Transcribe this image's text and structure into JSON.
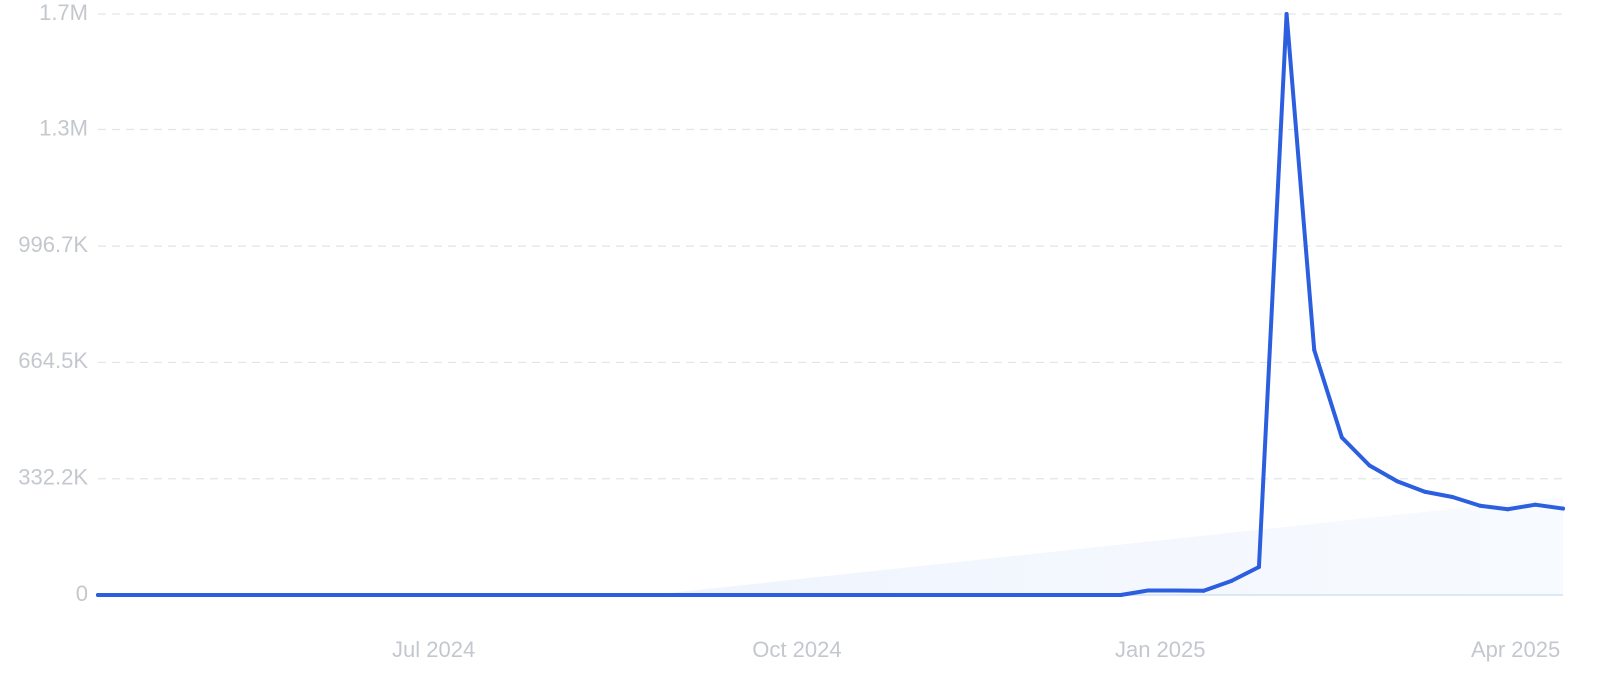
{
  "chart_data": {
    "type": "line",
    "title": "",
    "xlabel": "",
    "ylabel": "",
    "ylim": [
      0,
      1660000
    ],
    "xlim": [
      "2024-04-07",
      "2025-04-13"
    ],
    "grid": true,
    "legend": "none",
    "y_ticks": [
      {
        "value": 0,
        "label": "0"
      },
      {
        "value": 332200,
        "label": "332.2K"
      },
      {
        "value": 664500,
        "label": "664.5K"
      },
      {
        "value": 996700,
        "label": "996.7K"
      },
      {
        "value": 1330000,
        "label": "1.3M"
      },
      {
        "value": 1660000,
        "label": "1.7M"
      }
    ],
    "x_ticks": [
      {
        "value": "2024-07-01",
        "label": "Jul 2024"
      },
      {
        "value": "2024-10-01",
        "label": "Oct 2024"
      },
      {
        "value": "2025-01-01",
        "label": "Jan 2025"
      },
      {
        "value": "2025-04-01",
        "label": "Apr 2025"
      }
    ],
    "series": [
      {
        "color": "#2b5fe0",
        "x": [
          "2024-04-07",
          "2024-08-25",
          "2024-12-22",
          "2024-12-29",
          "2025-01-05",
          "2025-01-12",
          "2025-01-19",
          "2025-01-26",
          "2025-02-02",
          "2025-02-09",
          "2025-02-16",
          "2025-02-23",
          "2025-03-02",
          "2025-03-09",
          "2025-03-16",
          "2025-03-23",
          "2025-03-30",
          "2025-04-06",
          "2025-04-13"
        ],
        "values": [
          0,
          0,
          0,
          13000,
          13000,
          12000,
          40000,
          80000,
          1660000,
          700000,
          450000,
          370000,
          325000,
          295000,
          280000,
          255000,
          245000,
          258000,
          247000
        ]
      }
    ],
    "trend": {
      "color": "#eaf1fd",
      "x": [
        "2024-08-25",
        "2025-04-13"
      ],
      "values": [
        0,
        280000
      ]
    }
  }
}
